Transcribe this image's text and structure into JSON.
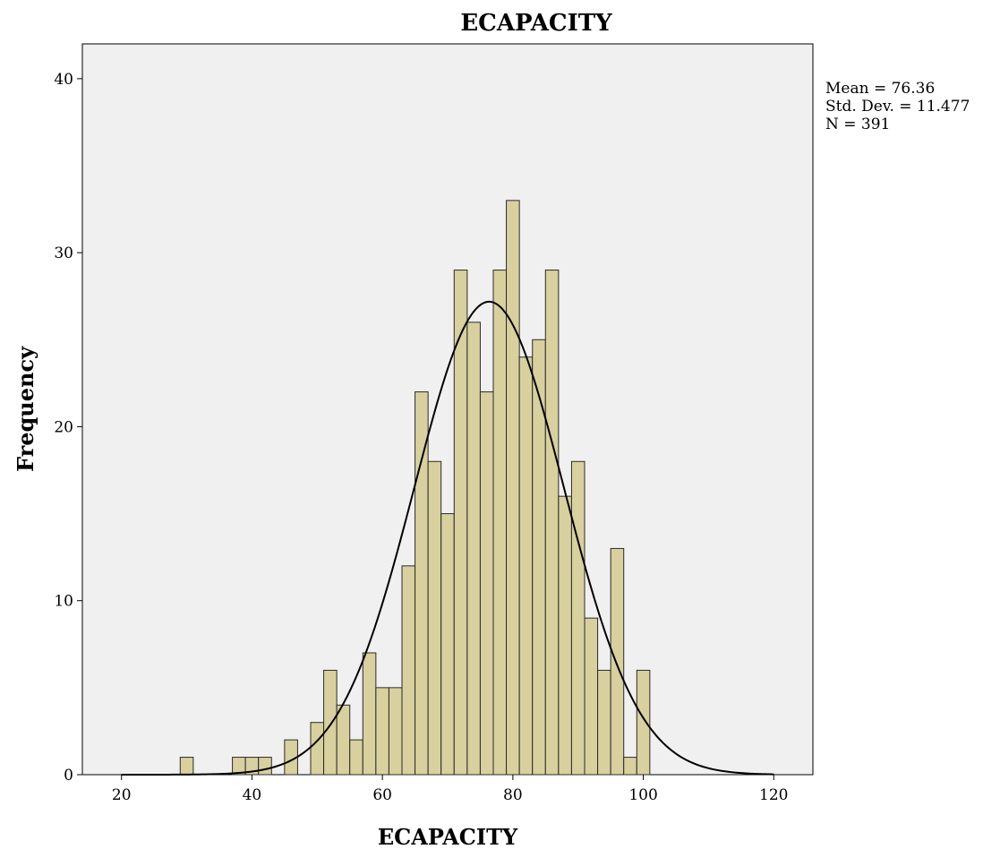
{
  "chart_data": {
    "type": "bar",
    "title": "ECAPACITY",
    "xlabel": "ECAPACITY",
    "ylabel": "Frequency",
    "xlim": [
      14,
      126
    ],
    "ylim": [
      0,
      42
    ],
    "xticks": [
      20,
      40,
      60,
      80,
      100,
      120
    ],
    "yticks": [
      0,
      10,
      20,
      30,
      40
    ],
    "bin_width": 2,
    "bins": [
      {
        "start": 29,
        "end": 31,
        "count": 1
      },
      {
        "start": 37,
        "end": 39,
        "count": 1
      },
      {
        "start": 39,
        "end": 41,
        "count": 1
      },
      {
        "start": 41,
        "end": 43,
        "count": 1
      },
      {
        "start": 45,
        "end": 47,
        "count": 2
      },
      {
        "start": 49,
        "end": 51,
        "count": 3
      },
      {
        "start": 51,
        "end": 53,
        "count": 6
      },
      {
        "start": 53,
        "end": 55,
        "count": 4
      },
      {
        "start": 55,
        "end": 57,
        "count": 2
      },
      {
        "start": 57,
        "end": 59,
        "count": 7
      },
      {
        "start": 59,
        "end": 61,
        "count": 5
      },
      {
        "start": 61,
        "end": 63,
        "count": 5
      },
      {
        "start": 63,
        "end": 65,
        "count": 12
      },
      {
        "start": 65,
        "end": 67,
        "count": 22
      },
      {
        "start": 67,
        "end": 69,
        "count": 18
      },
      {
        "start": 69,
        "end": 71,
        "count": 15
      },
      {
        "start": 71,
        "end": 73,
        "count": 29
      },
      {
        "start": 73,
        "end": 75,
        "count": 26
      },
      {
        "start": 75,
        "end": 77,
        "count": 22
      },
      {
        "start": 77,
        "end": 79,
        "count": 29
      },
      {
        "start": 79,
        "end": 81,
        "count": 33
      },
      {
        "start": 81,
        "end": 83,
        "count": 24
      },
      {
        "start": 83,
        "end": 85,
        "count": 25
      },
      {
        "start": 85,
        "end": 87,
        "count": 29
      },
      {
        "start": 87,
        "end": 89,
        "count": 16
      },
      {
        "start": 89,
        "end": 91,
        "count": 18
      },
      {
        "start": 91,
        "end": 93,
        "count": 9
      },
      {
        "start": 93,
        "end": 95,
        "count": 6
      },
      {
        "start": 95,
        "end": 97,
        "count": 13
      },
      {
        "start": 97,
        "end": 99,
        "count": 1
      },
      {
        "start": 99,
        "end": 101,
        "count": 6
      }
    ],
    "normal_curve": {
      "mean": 76.36,
      "std_dev": 11.477,
      "n": 391
    },
    "stats": [
      "Mean = 76.36",
      "Std. Dev. = 11.477",
      "N = 391"
    ],
    "grid": false,
    "legend_position": "top-right",
    "colors": {
      "bar_fill": "#d8d09e",
      "bar_stroke": "#2a2a2a",
      "plot_bg": "#f0f0f0",
      "curve": "#000000"
    }
  }
}
